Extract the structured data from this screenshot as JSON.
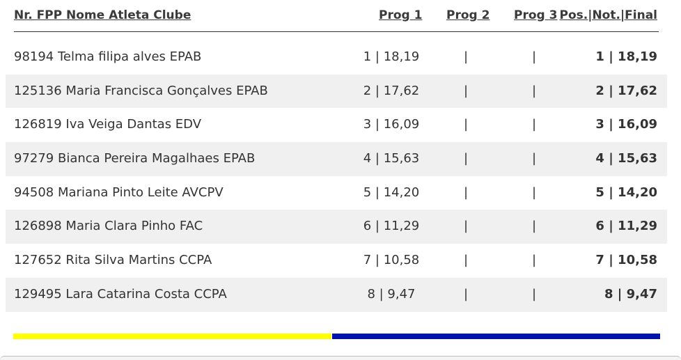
{
  "header": {
    "name": "Nr. FPP Nome Atleta Clube",
    "prog1": "Prog 1",
    "prog2": "Prog 2",
    "prog3": "Prog 3",
    "final": "Pos.|Not.|Final"
  },
  "rows": [
    {
      "name": "98194 Telma filipa alves EPAB",
      "prog1": "1 | 18,19",
      "prog2": "|",
      "prog3": "|",
      "final": "1 | 18,19"
    },
    {
      "name": "125136 Maria Francisca Gonçalves EPAB",
      "prog1": "2 | 17,62",
      "prog2": "|",
      "prog3": "|",
      "final": "2 | 17,62"
    },
    {
      "name": "126819 Iva Veiga Dantas EDV",
      "prog1": "3 | 16,09",
      "prog2": "|",
      "prog3": "|",
      "final": "3 | 16,09"
    },
    {
      "name": "97279 Bianca Pereira Magalhaes EPAB",
      "prog1": "4 | 15,63",
      "prog2": "|",
      "prog3": "|",
      "final": "4 | 15,63"
    },
    {
      "name": "94508 Mariana Pinto Leite AVCPV",
      "prog1": "5 | 14,20",
      "prog2": "|",
      "prog3": "|",
      "final": "5 | 14,20"
    },
    {
      "name": "126898 Maria Clara Pinho FAC",
      "prog1": "6 | 11,29",
      "prog2": "|",
      "prog3": "|",
      "final": "6 | 11,29"
    },
    {
      "name": "127652 Rita Silva Martins CCPA",
      "prog1": "7 | 10,58",
      "prog2": "|",
      "prog3": "|",
      "final": "7 | 10,58"
    },
    {
      "name": "129495 Lara Catarina Costa CCPA",
      "prog1": "8 | 9,47",
      "prog2": "|",
      "prog3": "|",
      "final": "8 | 9,47"
    }
  ],
  "colors": {
    "bar_left": "#ffff00",
    "bar_right": "#0012b0",
    "row_alt": "#f0f0f0"
  }
}
